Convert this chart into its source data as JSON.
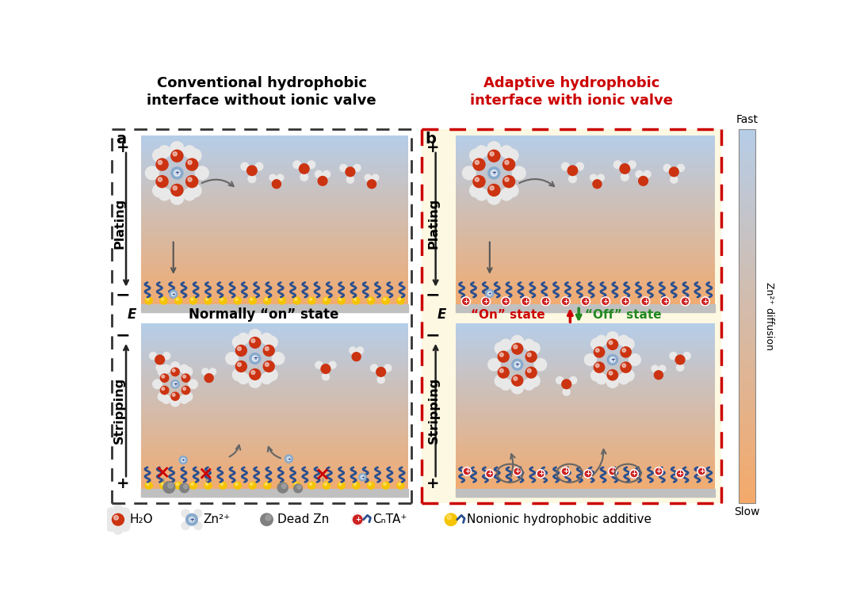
{
  "title_left": "Conventional hydrophobic\ninterface without ionic valve",
  "title_right": "Adaptive hydrophobic\ninterface with ionic valve",
  "title_left_color": "#000000",
  "title_right_color": "#cc0000",
  "label_a": "a",
  "label_b": "b",
  "normally_on_state": "Normally “on” state",
  "on_state_label": "“On” state",
  "off_state_label": "“Off” state",
  "e_label": "E",
  "plus_label": "+",
  "minus_label": "−",
  "plating_label": "Plating",
  "stripping_label": "Stripping",
  "fast_label": "Fast",
  "slow_label": "Slow",
  "diffusion_label": "Zn²⁺ diffusion",
  "legend_h2o": "H₂O",
  "legend_zn2p": "Zn²⁺",
  "legend_dead_zn": "Dead Zn",
  "legend_cnta": "CₙTA⁺",
  "legend_nonionic": "Nonionic hydrophobic additive",
  "bg_color": "#ffffff",
  "panel_right_fill": "#fdf8e1",
  "on_state_color": "#cc0000",
  "off_state_color": "#228822",
  "arrow_up_color": "#cc0000",
  "arrow_down_color": "#228822",
  "plating_top": "#b8cce4",
  "plating_bottom": "#f4b17a",
  "stripping_top": "#b8cce4",
  "stripping_bottom": "#f4b17a",
  "brush_color": "#2a4f8f",
  "zinc_color": "#f5c400",
  "substrate_color": "#c0c0c0",
  "dead_zn_color": "#808080",
  "plus_ion_color": "#cc2222",
  "water_red": "#cc3311",
  "water_white": "#e8e8e8",
  "zn_center": "#88aacc"
}
